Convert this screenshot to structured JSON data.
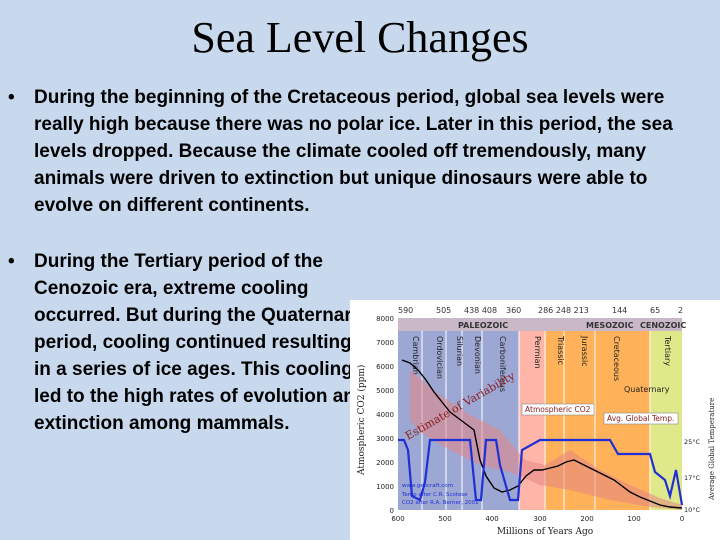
{
  "slide": {
    "title": "Sea Level Changes",
    "bullets": [
      {
        "marker": "•",
        "text": "During the beginning of the Cretaceous period, global sea levels were really high because there was no polar ice. Later in this period, the sea levels dropped. Because the climate cooled off tremendously, many animals were driven to extinction but unique dinosaurs were able to evolve on different continents."
      },
      {
        "marker": "•",
        "text": "During the Tertiary period of the Cenozoic era, extreme cooling occurred. But during the Quaternary period, cooling continued resulting in a series of ice ages. This cooling led to the high rates of evolution and extinction among mammals."
      }
    ]
  },
  "figure": {
    "ylabel_left": "Atmospheric CO2 (ppm)",
    "ylabel_right": "Average Global Temperature",
    "xlabel": "Millions of Years Ago",
    "y_ticks": [
      "8000",
      "7000",
      "6000",
      "5000",
      "4000",
      "3000",
      "2000",
      "1000",
      "0"
    ],
    "x_ticks": [
      "600",
      "500",
      "400",
      "300",
      "200",
      "100",
      "0"
    ],
    "top_ticks": [
      "590",
      "505",
      "438 408",
      "360",
      "286 248 213",
      "144",
      "65",
      "2"
    ],
    "eras": [
      "PALEOZOIC",
      "MESOZOIC",
      "CENOZOIC"
    ],
    "periods": [
      "Cambrian",
      "Ordovician",
      "Silurian",
      "Devonian",
      "Carboniferous",
      "Permian",
      "Triassic",
      "Jurassic",
      "Cretaceous",
      "Tertiary"
    ],
    "callouts": {
      "quaternary": "Quaternary",
      "co2": "Atmospheric CO2",
      "temp": "Avg. Global Temp.",
      "estimate": "Estimate of Variability"
    },
    "temp_ticks": [
      "25°C",
      "17°C",
      "10°C"
    ],
    "credits": [
      "www.geocraft.com",
      "Temp after C.R. Scotese",
      "CO2 after R.A. Berner, 2001"
    ],
    "colors": {
      "paleozoic_band": "#9da7d3",
      "permian_band": "#ffb5a8",
      "mesozoic_band": "#ffb25a",
      "cenozoic_band": "#dfe98a",
      "era_header": "#c9b9c8",
      "co2_line": "#000000",
      "temp_line": "#1f2fd6",
      "variability_fill": "#e48585"
    }
  }
}
